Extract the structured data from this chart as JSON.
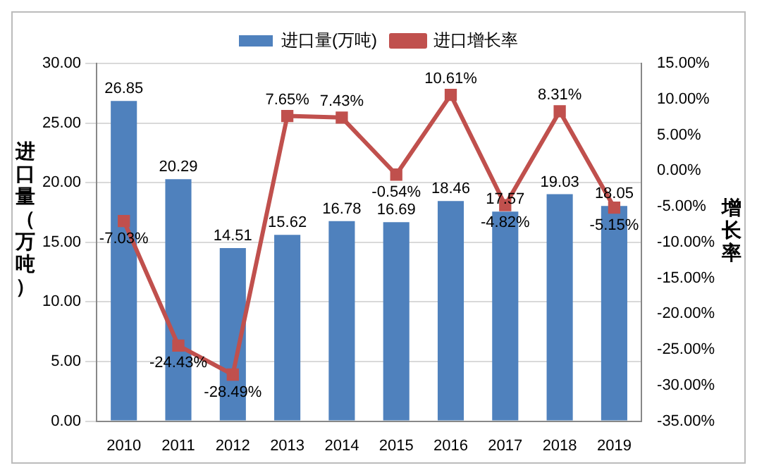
{
  "chart_data": {
    "type": "bar",
    "ylabel": "进口量（万吨）",
    "y2label": "增长率",
    "categories": [
      "2010",
      "2011",
      "2012",
      "2013",
      "2014",
      "2015",
      "2016",
      "2017",
      "2018",
      "2019"
    ],
    "series": [
      {
        "name": "进口量(万吨)",
        "type": "bar",
        "color": "#4f81bd",
        "values": [
          26.85,
          20.29,
          14.51,
          15.62,
          16.78,
          16.69,
          18.46,
          17.57,
          19.03,
          18.05
        ],
        "value_labels": [
          "26.85",
          "20.29",
          "14.51",
          "15.62",
          "16.78",
          "16.69",
          "18.46",
          "17.57",
          "19.03",
          "18.05"
        ]
      },
      {
        "name": "进口增长率",
        "type": "line",
        "axis": "y2",
        "color": "#c0504d",
        "marker": "square",
        "values": [
          -7.03,
          -24.43,
          -28.49,
          7.65,
          7.43,
          -0.54,
          10.61,
          -4.82,
          8.31,
          -5.15
        ],
        "value_labels": [
          "-7.03%",
          "-24.43%",
          "-28.49%",
          "7.65%",
          "7.43%",
          "-0.54%",
          "10.61%",
          "-4.82%",
          "8.31%",
          "-5.15%"
        ]
      }
    ],
    "ylim": [
      0,
      30
    ],
    "yticks": [
      {
        "value": 0,
        "label": "0.00"
      },
      {
        "value": 5,
        "label": "5.00"
      },
      {
        "value": 10,
        "label": "10.00"
      },
      {
        "value": 15,
        "label": "15.00"
      },
      {
        "value": 20,
        "label": "20.00"
      },
      {
        "value": 25,
        "label": "25.00"
      },
      {
        "value": 30,
        "label": "30.00"
      }
    ],
    "y2lim": [
      -35,
      15
    ],
    "y2ticks": [
      {
        "value": -35,
        "label": "-35.00%"
      },
      {
        "value": -30,
        "label": "-30.00%"
      },
      {
        "value": -25,
        "label": "-25.00%"
      },
      {
        "value": -20,
        "label": "-20.00%"
      },
      {
        "value": -15,
        "label": "-15.00%"
      },
      {
        "value": -10,
        "label": "-10.00%"
      },
      {
        "value": -5,
        "label": "-5.00%"
      },
      {
        "value": 0,
        "label": "0.00%"
      },
      {
        "value": 5,
        "label": "5.00%"
      },
      {
        "value": 10,
        "label": "10.00%"
      },
      {
        "value": 15,
        "label": "15.00%"
      }
    ],
    "grid": "y",
    "legend": "top"
  }
}
